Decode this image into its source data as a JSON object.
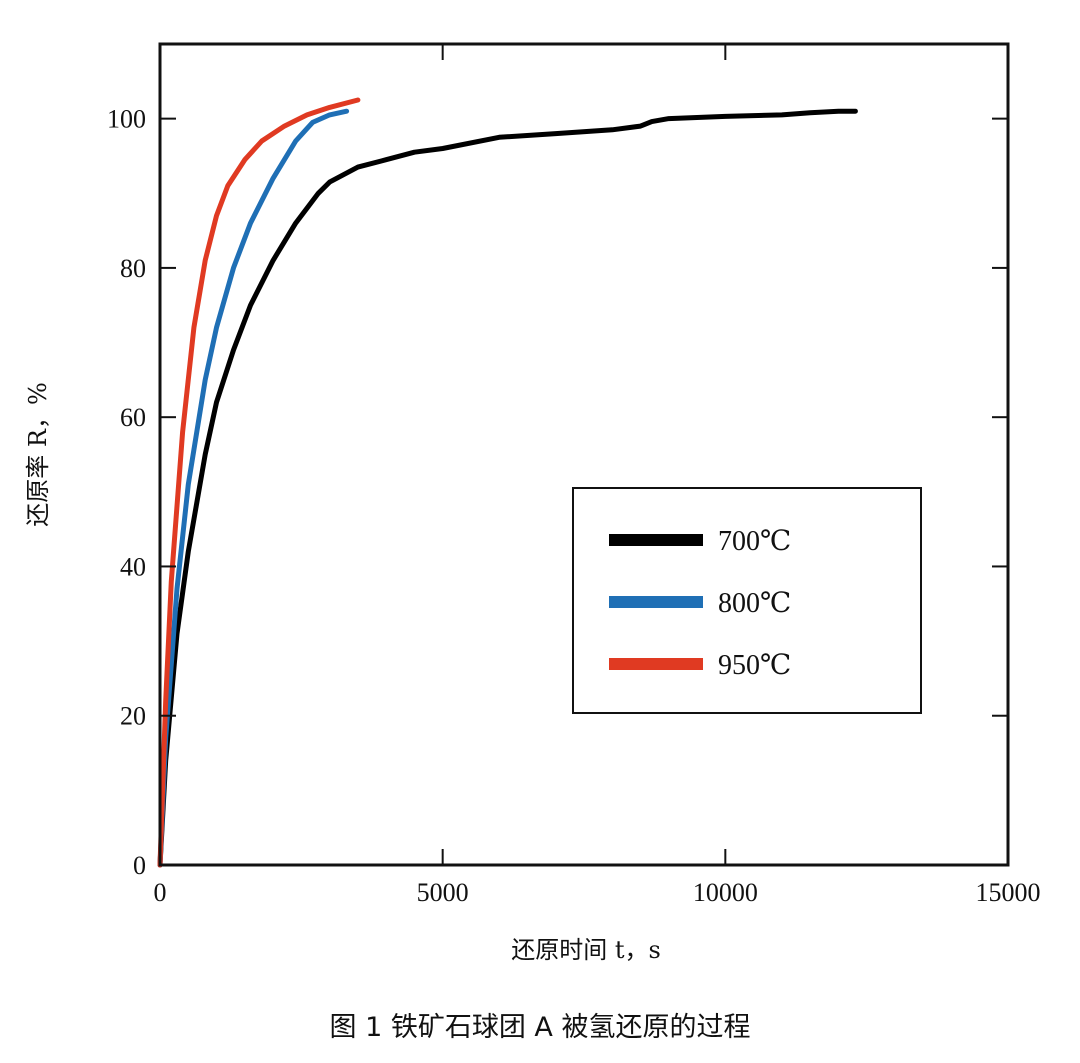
{
  "caption": "图 1   铁矿石球团 A 被氢还原的过程",
  "chart_data": {
    "type": "line",
    "title": "",
    "xlabel": "还原时间 t，s",
    "ylabel": "还原率 R，%",
    "xlim": [
      0,
      15000
    ],
    "ylim": [
      0,
      110
    ],
    "xticks": [
      0,
      5000,
      10000,
      15000
    ],
    "yticks": [
      0,
      20,
      40,
      60,
      80,
      100
    ],
    "grid": false,
    "legend_position": "center-right",
    "series": [
      {
        "name": "700℃",
        "color": "#000000",
        "x": [
          0,
          100,
          300,
          500,
          800,
          1000,
          1300,
          1600,
          2000,
          2400,
          2800,
          3000,
          3500,
          4000,
          4500,
          5000,
          6000,
          7000,
          8000,
          8500,
          8700,
          9000,
          10000,
          11000,
          11500,
          12000,
          12300
        ],
        "y": [
          0,
          14,
          31,
          42,
          55,
          62,
          69,
          75,
          81,
          86,
          90,
          91.5,
          93.5,
          94.5,
          95.5,
          96,
          97.5,
          98,
          98.5,
          99,
          99.6,
          100,
          100.3,
          100.5,
          100.8,
          101,
          101
        ]
      },
      {
        "name": "800℃",
        "color": "#1f6fb5",
        "x": [
          0,
          100,
          300,
          500,
          800,
          1000,
          1300,
          1600,
          2000,
          2400,
          2700,
          3000,
          3300
        ],
        "y": [
          0,
          17,
          37,
          51,
          65,
          72,
          80,
          86,
          92,
          97,
          99.5,
          100.5,
          101
        ]
      },
      {
        "name": "950℃",
        "color": "#e03a22",
        "x": [
          0,
          100,
          200,
          400,
          600,
          800,
          1000,
          1200,
          1500,
          1800,
          2200,
          2600,
          3000,
          3500
        ],
        "y": [
          0,
          22,
          38,
          58,
          72,
          81,
          87,
          91,
          94.5,
          97,
          99,
          100.5,
          101.5,
          102.5
        ]
      }
    ]
  }
}
